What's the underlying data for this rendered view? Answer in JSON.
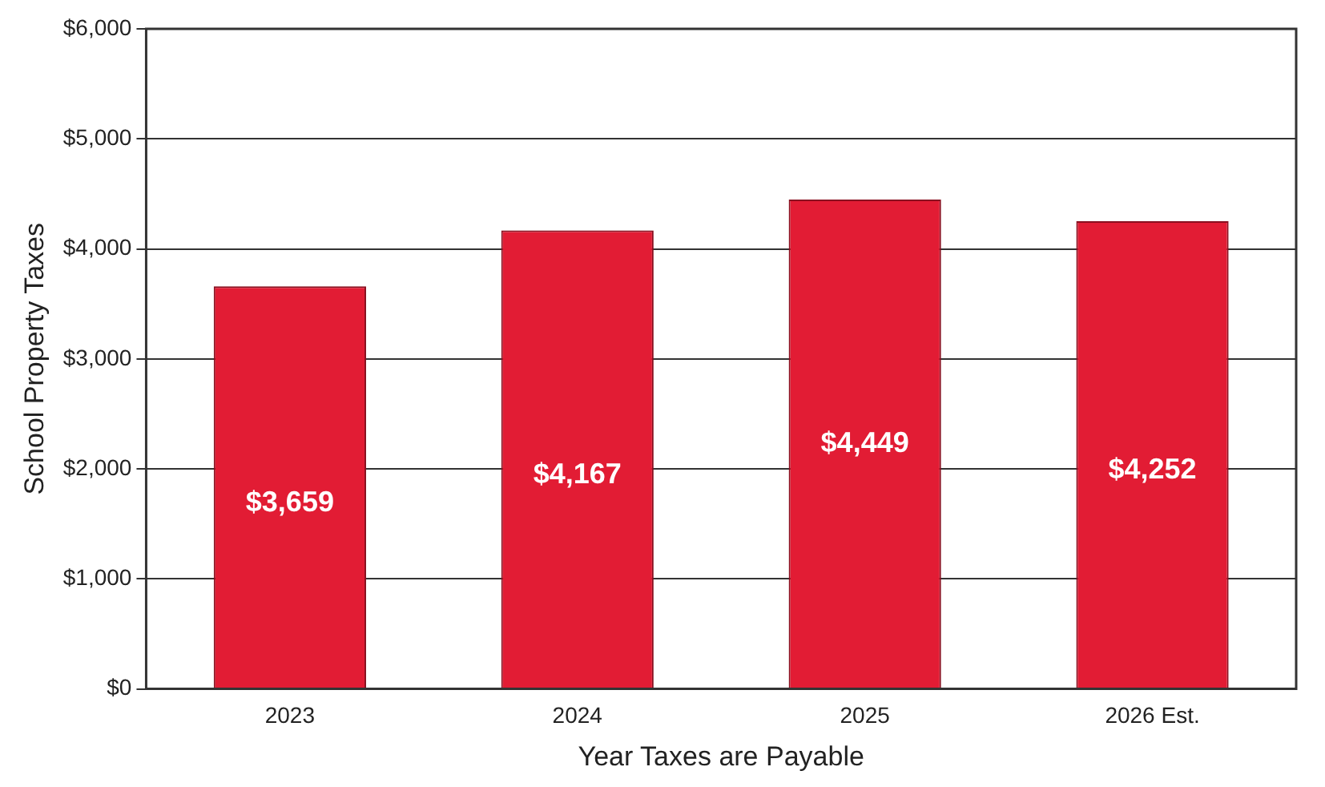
{
  "chart_data": {
    "type": "bar",
    "xlabel": "Year Taxes are Payable",
    "ylabel": "School Property Taxes",
    "categories": [
      "2023",
      "2024",
      "2025",
      "2026 Est."
    ],
    "values": [
      3659,
      4167,
      4449,
      4252
    ],
    "value_labels": [
      "$3,659",
      "$4,167",
      "$4,449",
      "$4,252"
    ],
    "color": "#e21c34",
    "ylim": [
      0,
      6000
    ],
    "yticks": [
      {
        "value": 0,
        "label": "$0"
      },
      {
        "value": 1000,
        "label": "$1,000"
      },
      {
        "value": 2000,
        "label": "$2,000"
      },
      {
        "value": 3000,
        "label": "$3,000"
      },
      {
        "value": 4000,
        "label": "$4,000"
      },
      {
        "value": 5000,
        "label": "$5,000"
      },
      {
        "value": 6000,
        "label": "$6,000"
      }
    ],
    "grid": "y",
    "legend": false
  }
}
